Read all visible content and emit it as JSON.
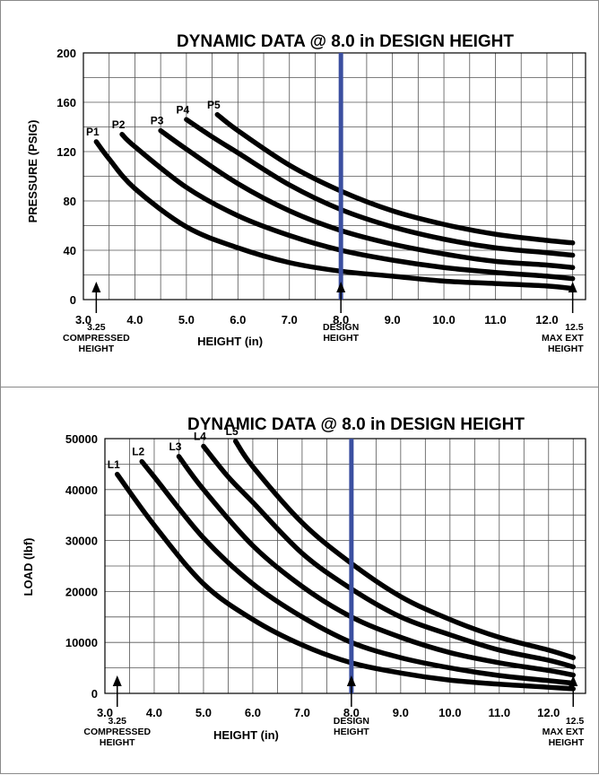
{
  "chart_data": [
    {
      "type": "line",
      "title": "DYNAMIC DATA @ 8.0 in DESIGN HEIGHT",
      "xlabel": "HEIGHT (in)",
      "ylabel": "PRESSURE (PSIG)",
      "xlim": [
        3.0,
        12.75
      ],
      "ylim": [
        0,
        200
      ],
      "x_ticks": [
        3.0,
        4.0,
        5.0,
        6.0,
        7.0,
        8.0,
        9.0,
        10.0,
        11.0,
        12.0
      ],
      "x_tick_labels": [
        "3.0",
        "4.0",
        "5.0",
        "6.0",
        "7.0",
        "8.0",
        "9.0",
        "10.0",
        "11.0",
        "12.0"
      ],
      "y_ticks": [
        0,
        40,
        80,
        120,
        160,
        200
      ],
      "y_tick_labels": [
        "0",
        "40",
        "80",
        "120",
        "160",
        "200"
      ],
      "grid": true,
      "design_height": 8.0,
      "series": [
        {
          "name": "P1",
          "x": [
            3.25,
            3.5,
            4.0,
            5.0,
            6.0,
            7.0,
            8.0,
            9.0,
            10.0,
            11.0,
            12.0,
            12.5
          ],
          "values": [
            128,
            114,
            90,
            59,
            42,
            30,
            23,
            19,
            15,
            13,
            11,
            9
          ]
        },
        {
          "name": "P2",
          "x": [
            3.75,
            4.0,
            5.0,
            6.0,
            7.0,
            8.0,
            9.0,
            10.0,
            11.0,
            12.0,
            12.5
          ],
          "values": [
            134,
            124,
            91,
            68,
            52,
            40,
            32,
            26,
            22,
            19,
            17
          ]
        },
        {
          "name": "P3",
          "x": [
            4.5,
            5.0,
            6.0,
            7.0,
            8.0,
            9.0,
            10.0,
            11.0,
            12.0,
            12.5
          ],
          "values": [
            137,
            122,
            94,
            72,
            56,
            45,
            37,
            31,
            28,
            26
          ]
        },
        {
          "name": "P4",
          "x": [
            5.0,
            5.5,
            6.0,
            7.0,
            8.0,
            9.0,
            10.0,
            11.0,
            12.0,
            12.5
          ],
          "values": [
            146,
            132,
            119,
            93,
            73,
            59,
            49,
            42,
            38,
            36
          ]
        },
        {
          "name": "P5",
          "x": [
            5.6,
            6.0,
            7.0,
            8.0,
            9.0,
            10.0,
            11.0,
            12.0,
            12.5
          ],
          "values": [
            150,
            137,
            109,
            88,
            72,
            61,
            53,
            48,
            46
          ]
        }
      ],
      "annotations": [
        {
          "x": 3.25,
          "lines": [
            "3.25",
            "COMPRESSED",
            "HEIGHT"
          ]
        },
        {
          "x": 8.0,
          "lines": [
            "DESIGN",
            "HEIGHT"
          ]
        },
        {
          "x": 12.5,
          "lines": [
            "12.5",
            "MAX EXT",
            "HEIGHT"
          ]
        }
      ]
    },
    {
      "type": "line",
      "title": "DYNAMIC DATA @ 8.0 in DESIGN HEIGHT",
      "xlabel": "HEIGHT (in)",
      "ylabel": "LOAD (lbf)",
      "xlim": [
        3.0,
        12.75
      ],
      "ylim": [
        0,
        50000
      ],
      "x_ticks": [
        3.0,
        4.0,
        5.0,
        6.0,
        7.0,
        8.0,
        9.0,
        10.0,
        11.0,
        12.0
      ],
      "x_tick_labels": [
        "3.0",
        "4.0",
        "5.0",
        "6.0",
        "7.0",
        "8.0",
        "9.0",
        "10.0",
        "11.0",
        "12.0"
      ],
      "y_ticks": [
        0,
        10000,
        20000,
        30000,
        40000,
        50000
      ],
      "y_tick_labels": [
        "0",
        "10000",
        "20000",
        "30000",
        "40000",
        "50000"
      ],
      "grid": true,
      "design_height": 8.0,
      "series": [
        {
          "name": "L1",
          "x": [
            3.25,
            4.0,
            5.0,
            6.0,
            7.0,
            8.0,
            9.0,
            10.0,
            11.0,
            12.0,
            12.5
          ],
          "values": [
            43000,
            33000,
            21500,
            14500,
            9500,
            6000,
            4000,
            2600,
            1800,
            1200,
            900
          ]
        },
        {
          "name": "L2",
          "x": [
            3.75,
            4.0,
            5.0,
            6.0,
            7.0,
            8.0,
            9.0,
            10.0,
            11.0,
            12.0,
            12.5
          ],
          "values": [
            45500,
            42500,
            30500,
            21500,
            15000,
            10000,
            7000,
            5000,
            3500,
            2500,
            2000
          ]
        },
        {
          "name": "L3",
          "x": [
            4.5,
            5.0,
            6.0,
            7.0,
            8.0,
            9.0,
            10.0,
            11.0,
            12.0,
            12.5
          ],
          "values": [
            46500,
            40000,
            29000,
            21000,
            15000,
            11000,
            8000,
            6000,
            4500,
            3600
          ]
        },
        {
          "name": "L4",
          "x": [
            5.0,
            5.5,
            6.0,
            7.0,
            8.0,
            9.0,
            10.0,
            11.0,
            12.0,
            12.5
          ],
          "values": [
            48500,
            42500,
            37500,
            27500,
            20500,
            15000,
            11500,
            8500,
            6500,
            5200
          ]
        },
        {
          "name": "L5",
          "x": [
            5.65,
            6.0,
            7.0,
            8.0,
            9.0,
            10.0,
            11.0,
            12.0,
            12.5
          ],
          "values": [
            49500,
            44500,
            33500,
            25500,
            19000,
            14500,
            11000,
            8500,
            7000
          ]
        }
      ],
      "annotations": [
        {
          "x": 3.25,
          "lines": [
            "3.25",
            "COMPRESSED",
            "HEIGHT"
          ]
        },
        {
          "x": 8.0,
          "lines": [
            "DESIGN",
            "HEIGHT"
          ]
        },
        {
          "x": 12.5,
          "lines": [
            "12.5",
            "MAX EXT",
            "HEIGHT"
          ]
        }
      ]
    }
  ],
  "colors": {
    "design_line": "#3b4fa0",
    "curves": "#000000",
    "grid": "#555555"
  }
}
